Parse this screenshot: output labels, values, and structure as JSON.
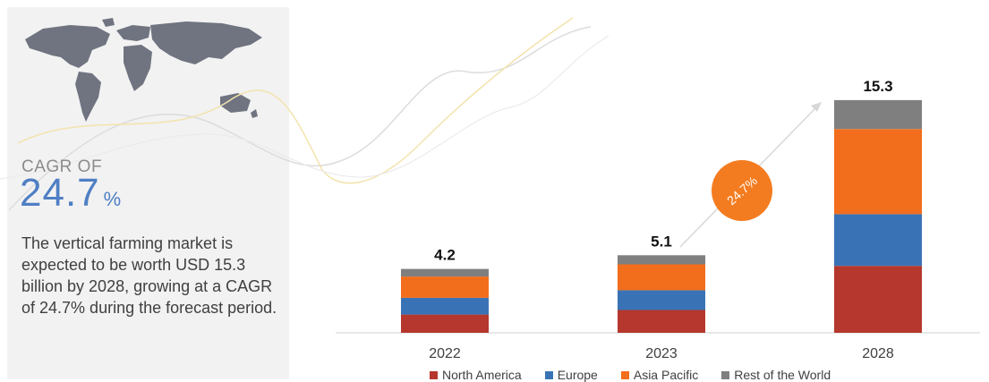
{
  "summary": {
    "cagr_label": "CAGR OF",
    "cagr_value": "24.7",
    "cagr_unit": "%",
    "description": "The vertical farming market is expected to be worth USD 15.3  billion by 2028, growing at a CAGR of 24.7% during the forecast period."
  },
  "colors": {
    "north_america": "#b5372d",
    "europe": "#3a73b5",
    "asia_pacific": "#f26d1c",
    "rest_of_world": "#7f7f7f",
    "growth_badge": "#f47c20"
  },
  "chart_data": {
    "type": "bar",
    "stacked": true,
    "categories": [
      "2022",
      "2023",
      "2028"
    ],
    "totals": [
      "4.2",
      "5.1",
      "15.3"
    ],
    "series": [
      {
        "name": "North America",
        "values": [
          1.2,
          1.5,
          4.4
        ]
      },
      {
        "name": "Europe",
        "values": [
          1.1,
          1.3,
          3.4
        ]
      },
      {
        "name": "Asia Pacific",
        "values": [
          1.4,
          1.7,
          5.6
        ]
      },
      {
        "name": "Rest of the World",
        "values": [
          0.5,
          0.6,
          1.9
        ]
      }
    ],
    "growth_annotation": "24.7%",
    "legend_position": "bottom"
  }
}
